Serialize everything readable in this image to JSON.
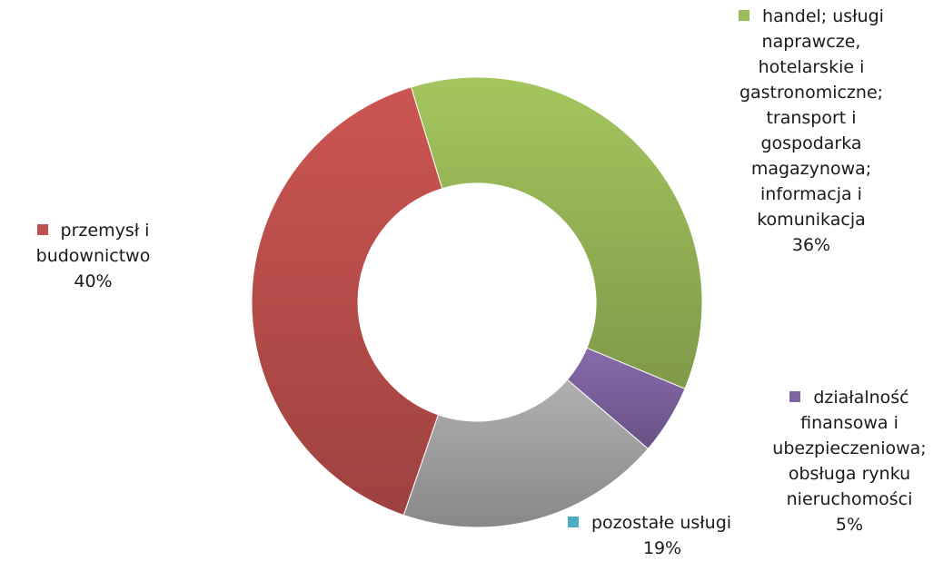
{
  "chart_data": {
    "type": "pie",
    "donut": true,
    "slices": [
      {
        "key": "trade",
        "label": "handel; usługi\nnaprawcze,\nhotelarskie i\ngastronomiczne;\ntransport i\ngospodarka\nmagazynowa;\ninformacja i\nkomunikacja",
        "value": 36,
        "value_label": "36%",
        "color": "#9bbb59"
      },
      {
        "key": "finance",
        "label": "działalność\nfinansowa i\nubezpieczeniowa;\nobsługa rynku\nnieruchomości",
        "value": 5,
        "value_label": "5%",
        "color": "#8064a2"
      },
      {
        "key": "other",
        "label": "pozostałe usługi",
        "value": 19,
        "value_label": "19%",
        "color": "#a6a6a6",
        "marker_color": "#4bacc6"
      },
      {
        "key": "industry",
        "label": "przemysł i\nbudownictwo",
        "value": 40,
        "value_label": "40%",
        "color": "#c0504d"
      }
    ],
    "start_angle_deg": -17,
    "direction": "clockwise"
  }
}
